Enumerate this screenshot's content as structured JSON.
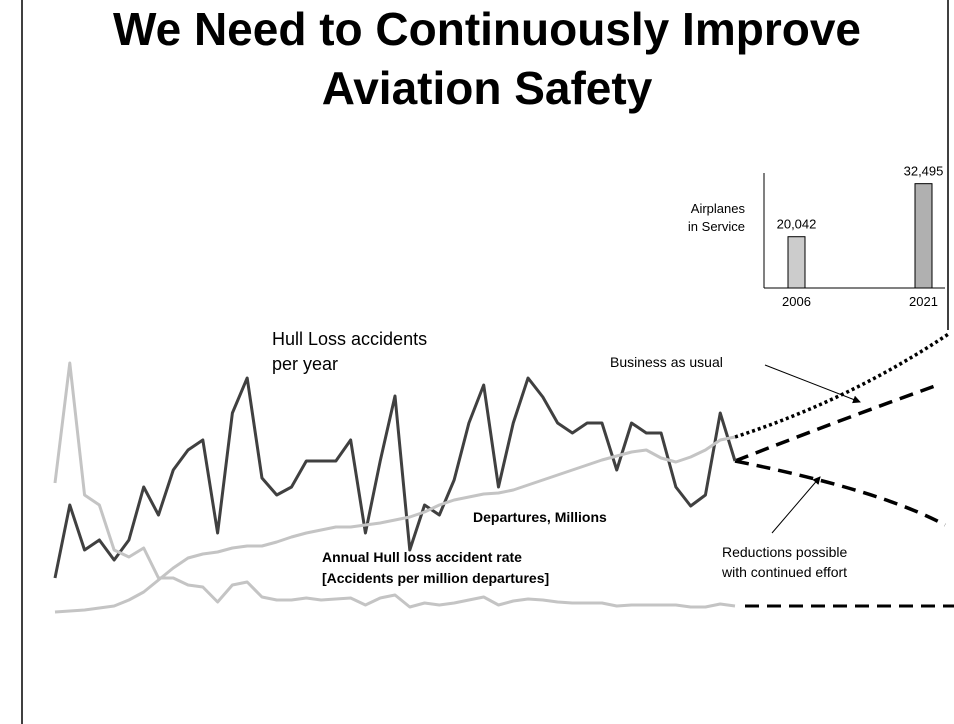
{
  "title_lines": [
    "We Need to Continuously Improve",
    "Aviation Safety"
  ],
  "chart_data": [
    {
      "type": "line",
      "ylim": [
        0,
        280
      ],
      "series": [
        {
          "label_lines": [
            "Hull Loss accidents",
            "per year"
          ],
          "color": "#404040",
          "values": [
            42,
            115,
            70,
            80,
            60,
            80,
            133,
            105,
            150,
            170,
            180,
            87,
            207,
            242,
            142,
            125,
            133,
            159,
            159,
            159,
            180,
            87,
            159,
            224,
            70,
            115,
            105,
            140,
            197,
            235,
            133,
            197,
            242,
            223,
            197,
            187,
            197,
            197,
            150,
            197,
            187,
            187,
            133,
            114,
            125,
            207,
            159
          ]
        },
        {
          "label_lines": [
            "Departures, Millions"
          ],
          "color": "#c4c4c4",
          "values": [
            8,
            9,
            10,
            12,
            14,
            20,
            28,
            40,
            52,
            62,
            66,
            68,
            72,
            74,
            74,
            78,
            83,
            87,
            90,
            93,
            93,
            95,
            97,
            100,
            103,
            108,
            115,
            120,
            123,
            126,
            127,
            130,
            135,
            140,
            145,
            150,
            155,
            160,
            164,
            168,
            170,
            162,
            158,
            163,
            170,
            180,
            183
          ]
        },
        {
          "label_lines": [
            "Annual Hull loss accident rate",
            "[Accidents per million departures]"
          ],
          "color": "#c4c4c4",
          "values": [
            137,
            257,
            125,
            115,
            70,
            63,
            72,
            42,
            42,
            35,
            33,
            18,
            35,
            38,
            23,
            20,
            20,
            22,
            20,
            21,
            22,
            15,
            22,
            25,
            13,
            17,
            15,
            17,
            20,
            23,
            15,
            19,
            21,
            20,
            18,
            17,
            17,
            17,
            14,
            15,
            15,
            15,
            15,
            13,
            13,
            16,
            14
          ]
        }
      ],
      "annotations": [
        {
          "text_lines": [
            "Business as usual"
          ]
        },
        {
          "text_lines": [
            "Reductions possible",
            "with continued effort"
          ]
        }
      ]
    },
    {
      "type": "bar",
      "label_lines": [
        "Airplanes",
        "in Service"
      ],
      "categories": [
        "2006",
        "2021"
      ],
      "values": [
        20042,
        32495
      ],
      "value_labels": [
        "20,042",
        "32,495"
      ],
      "colors": [
        "#cccccc",
        "#b0b0b0"
      ],
      "ylim": [
        8000,
        35000
      ]
    }
  ]
}
